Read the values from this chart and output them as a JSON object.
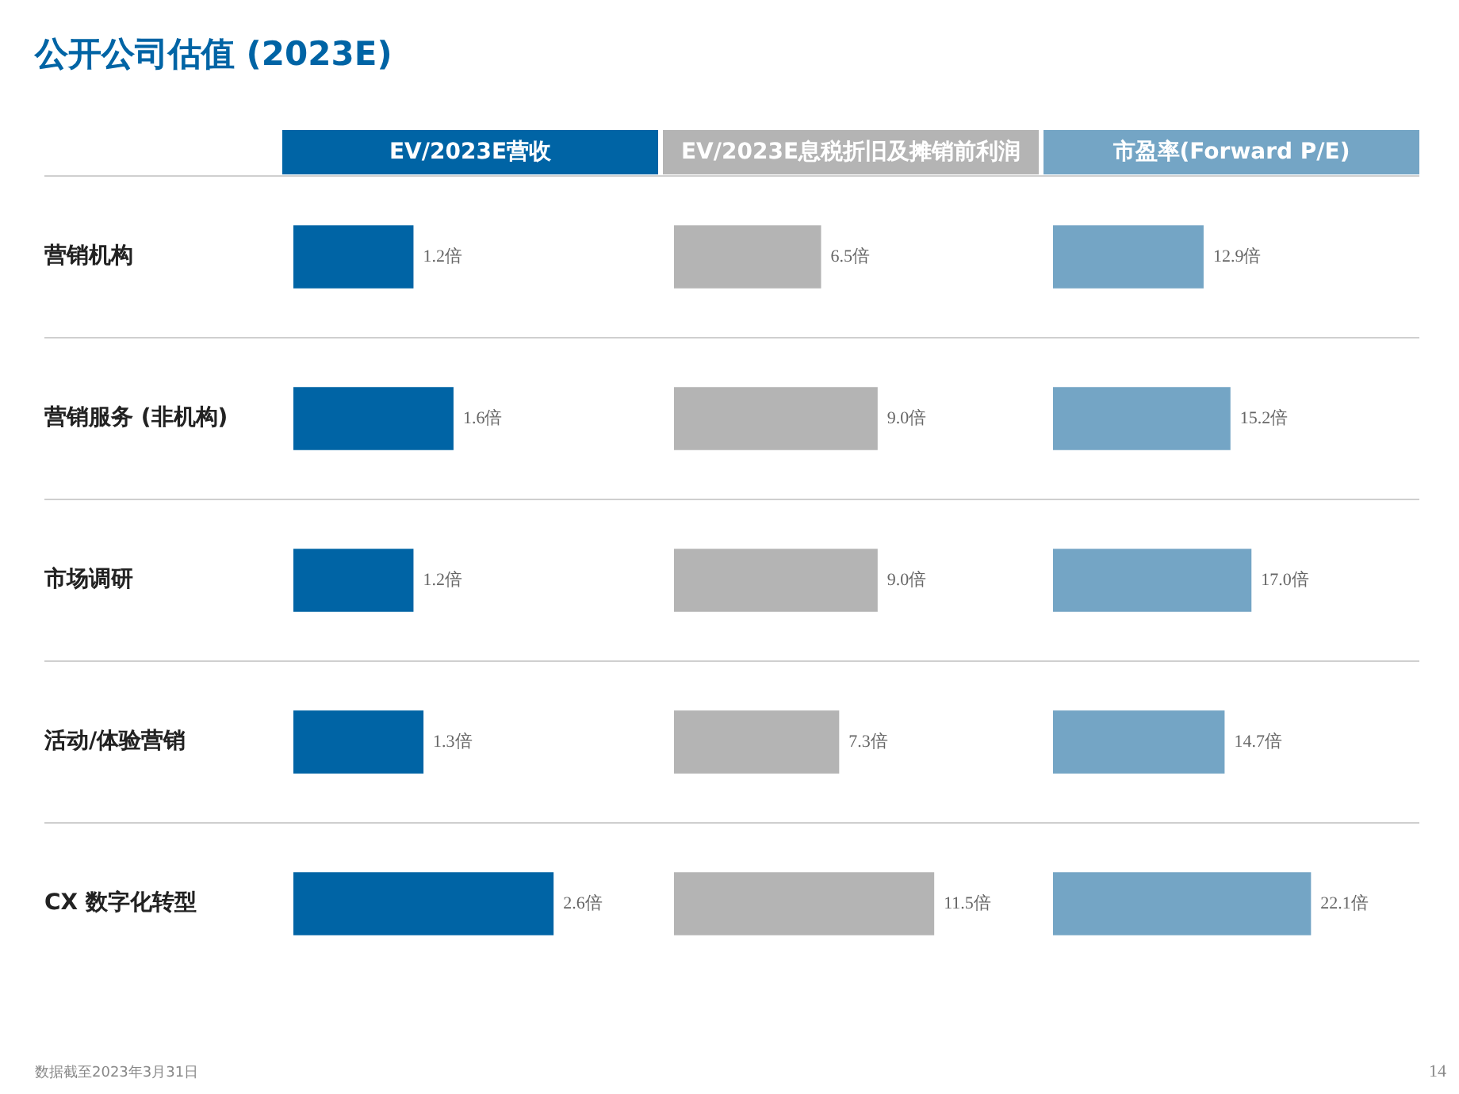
{
  "chart_data": [
    {
      "type": "other",
      "title": "公开公司估值 (2023E)",
      "annotations": [
        "数据截至2023年3月31日",
        "14"
      ]
    },
    {
      "type": "bar",
      "orientation": "horizontal",
      "title": "EV/2023E营收",
      "categories": [
        "营销机构",
        "营销服务 (非机构)",
        "市场调研",
        "活动/体验营销",
        "CX 数字化转型"
      ],
      "grid": "y",
      "tick_labels": "y",
      "series": [
        {
          "color": "#0064a5",
          "values": [
            1.2,
            1.6,
            1.2,
            1.3,
            2.6
          ],
          "value_labels": [
            "1.2倍",
            "1.6倍",
            "1.2倍",
            "1.3倍",
            "2.6倍"
          ]
        }
      ]
    },
    {
      "type": "bar",
      "orientation": "horizontal",
      "title": "EV/2023E息税折旧及摊销前利润",
      "categories": [
        null,
        null,
        null,
        null,
        null
      ],
      "grid": "y",
      "tick_labels": false,
      "series": [
        {
          "color": "#b4b4b4",
          "values": [
            6.5,
            9.0,
            9.0,
            7.3,
            11.5
          ],
          "value_labels": [
            "6.5倍",
            "9.0倍",
            "9.0倍",
            "7.3倍",
            "11.5倍"
          ]
        }
      ]
    },
    {
      "type": "bar",
      "orientation": "horizontal",
      "title": "市盈率(Forward P/E)",
      "categories": [
        null,
        null,
        null,
        null,
        null
      ],
      "grid": "y",
      "tick_labels": false,
      "series": [
        {
          "color": "#74a5c5",
          "values": [
            12.9,
            15.2,
            17.0,
            14.7,
            22.1
          ],
          "value_labels": [
            "12.9倍",
            "15.2倍",
            "17.0倍",
            "14.7倍",
            "22.1倍"
          ]
        }
      ]
    }
  ]
}
